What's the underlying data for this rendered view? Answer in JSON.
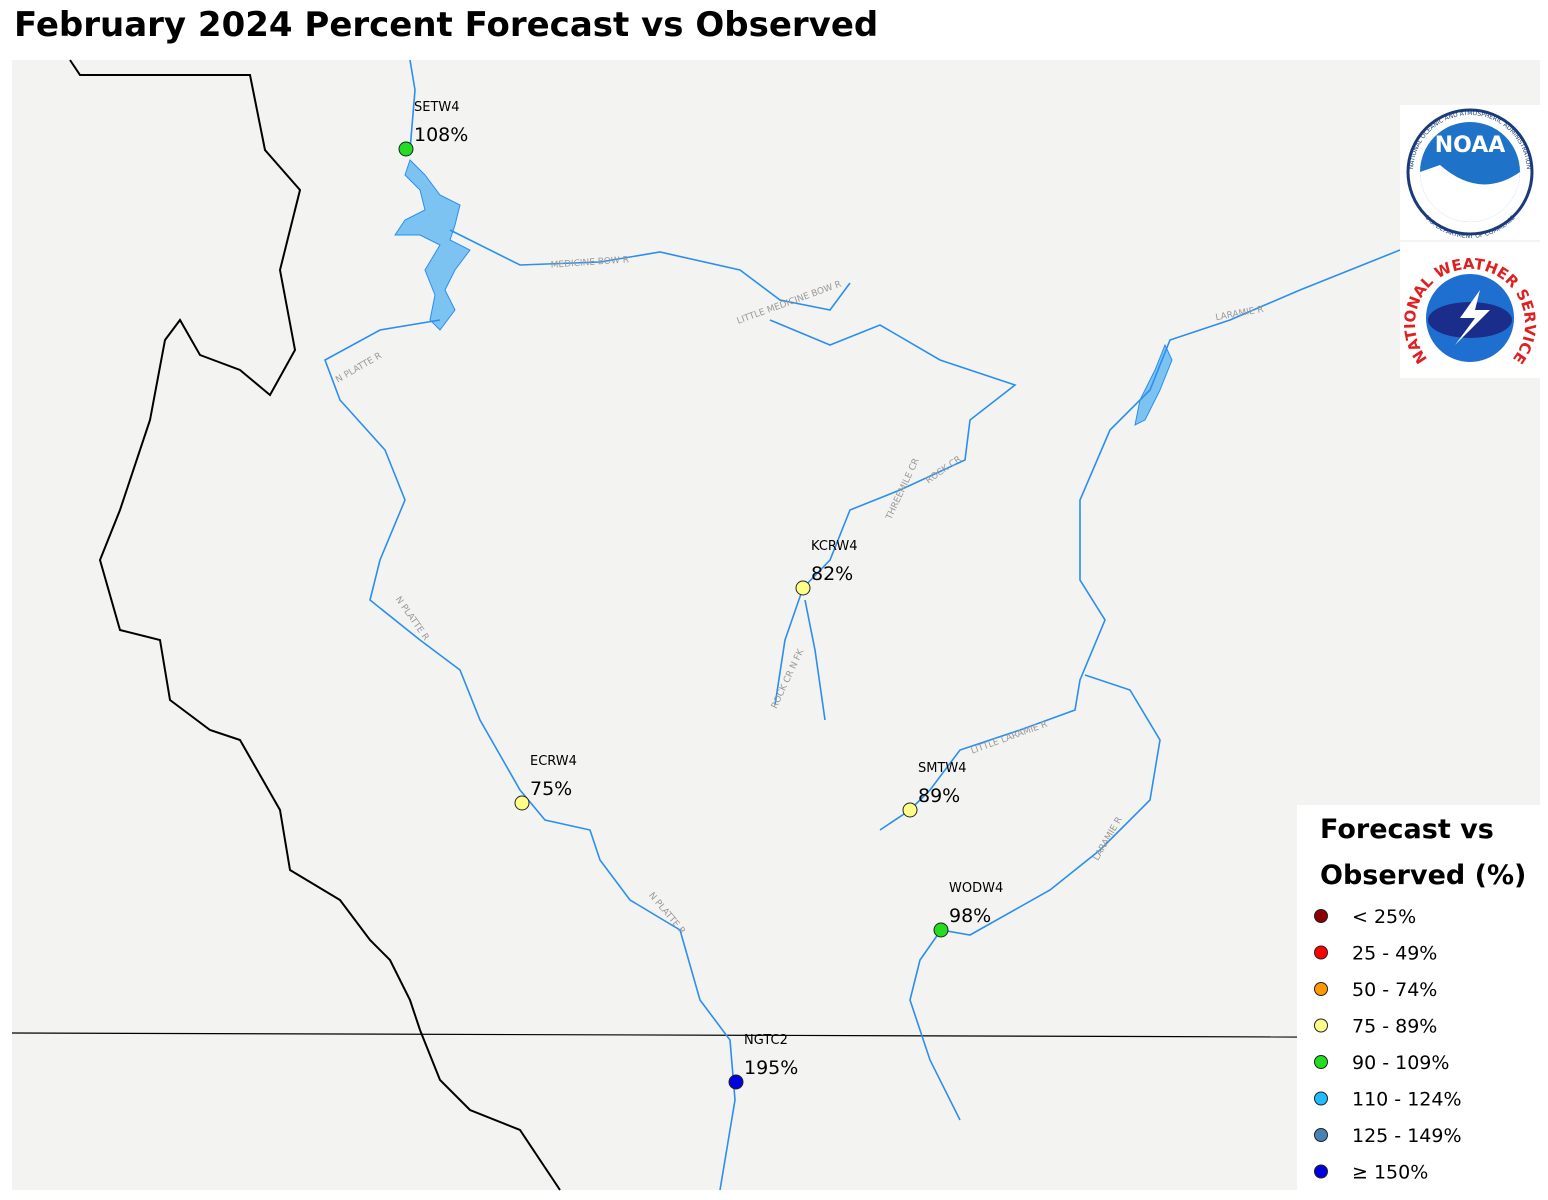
{
  "title": "February 2024 Percent Forecast vs Observed",
  "stations": [
    {
      "id": "SETW4",
      "label": "108%",
      "color": "#22dd22"
    },
    {
      "id": "KCRW4",
      "label": "82%",
      "color": "#ffff88"
    },
    {
      "id": "ECRW4",
      "label": "75%",
      "color": "#ffff88"
    },
    {
      "id": "SMTW4",
      "label": "89%",
      "color": "#ffff88"
    },
    {
      "id": "WODW4",
      "label": "98%",
      "color": "#22dd22"
    },
    {
      "id": "NGTC2",
      "label": "195%",
      "color": "#0000dd"
    }
  ],
  "rivers": [
    "MEDICINE BOW R",
    "LITTLE MEDICINE BOW R",
    "N PLATTE R",
    "THREEMILE CR",
    "ROCK CR",
    "N PLATTE R",
    "ROCK CR N FK",
    "LITTLE LARAMIE R",
    "LARAMIE R",
    "N PLATTE R",
    "LARAMIE R"
  ],
  "logos": {
    "noaa": "NOAA",
    "noaa_ring_top": "NATIONAL OCEANIC AND ATMOSPHERIC ADMINISTRATION",
    "noaa_ring_bottom": "U.S. DEPARTMENT OF COMMERCE",
    "nws": "NATIONAL WEATHER SERVICE"
  },
  "legend": {
    "title": [
      "Forecast vs",
      "Observed (%)"
    ],
    "items": [
      {
        "label": "< 25%",
        "color": "#8b0000"
      },
      {
        "label": "25 - 49%",
        "color": "#ff0000"
      },
      {
        "label": "50 - 74%",
        "color": "#ff9900"
      },
      {
        "label": "75 - 89%",
        "color": "#ffff88"
      },
      {
        "label": "90 - 109%",
        "color": "#22dd22"
      },
      {
        "label": "110 - 124%",
        "color": "#22bbff"
      },
      {
        "label": "125 - 149%",
        "color": "#4682b4"
      },
      {
        "label": "≥ 150%",
        "color": "#0000dd"
      }
    ]
  }
}
